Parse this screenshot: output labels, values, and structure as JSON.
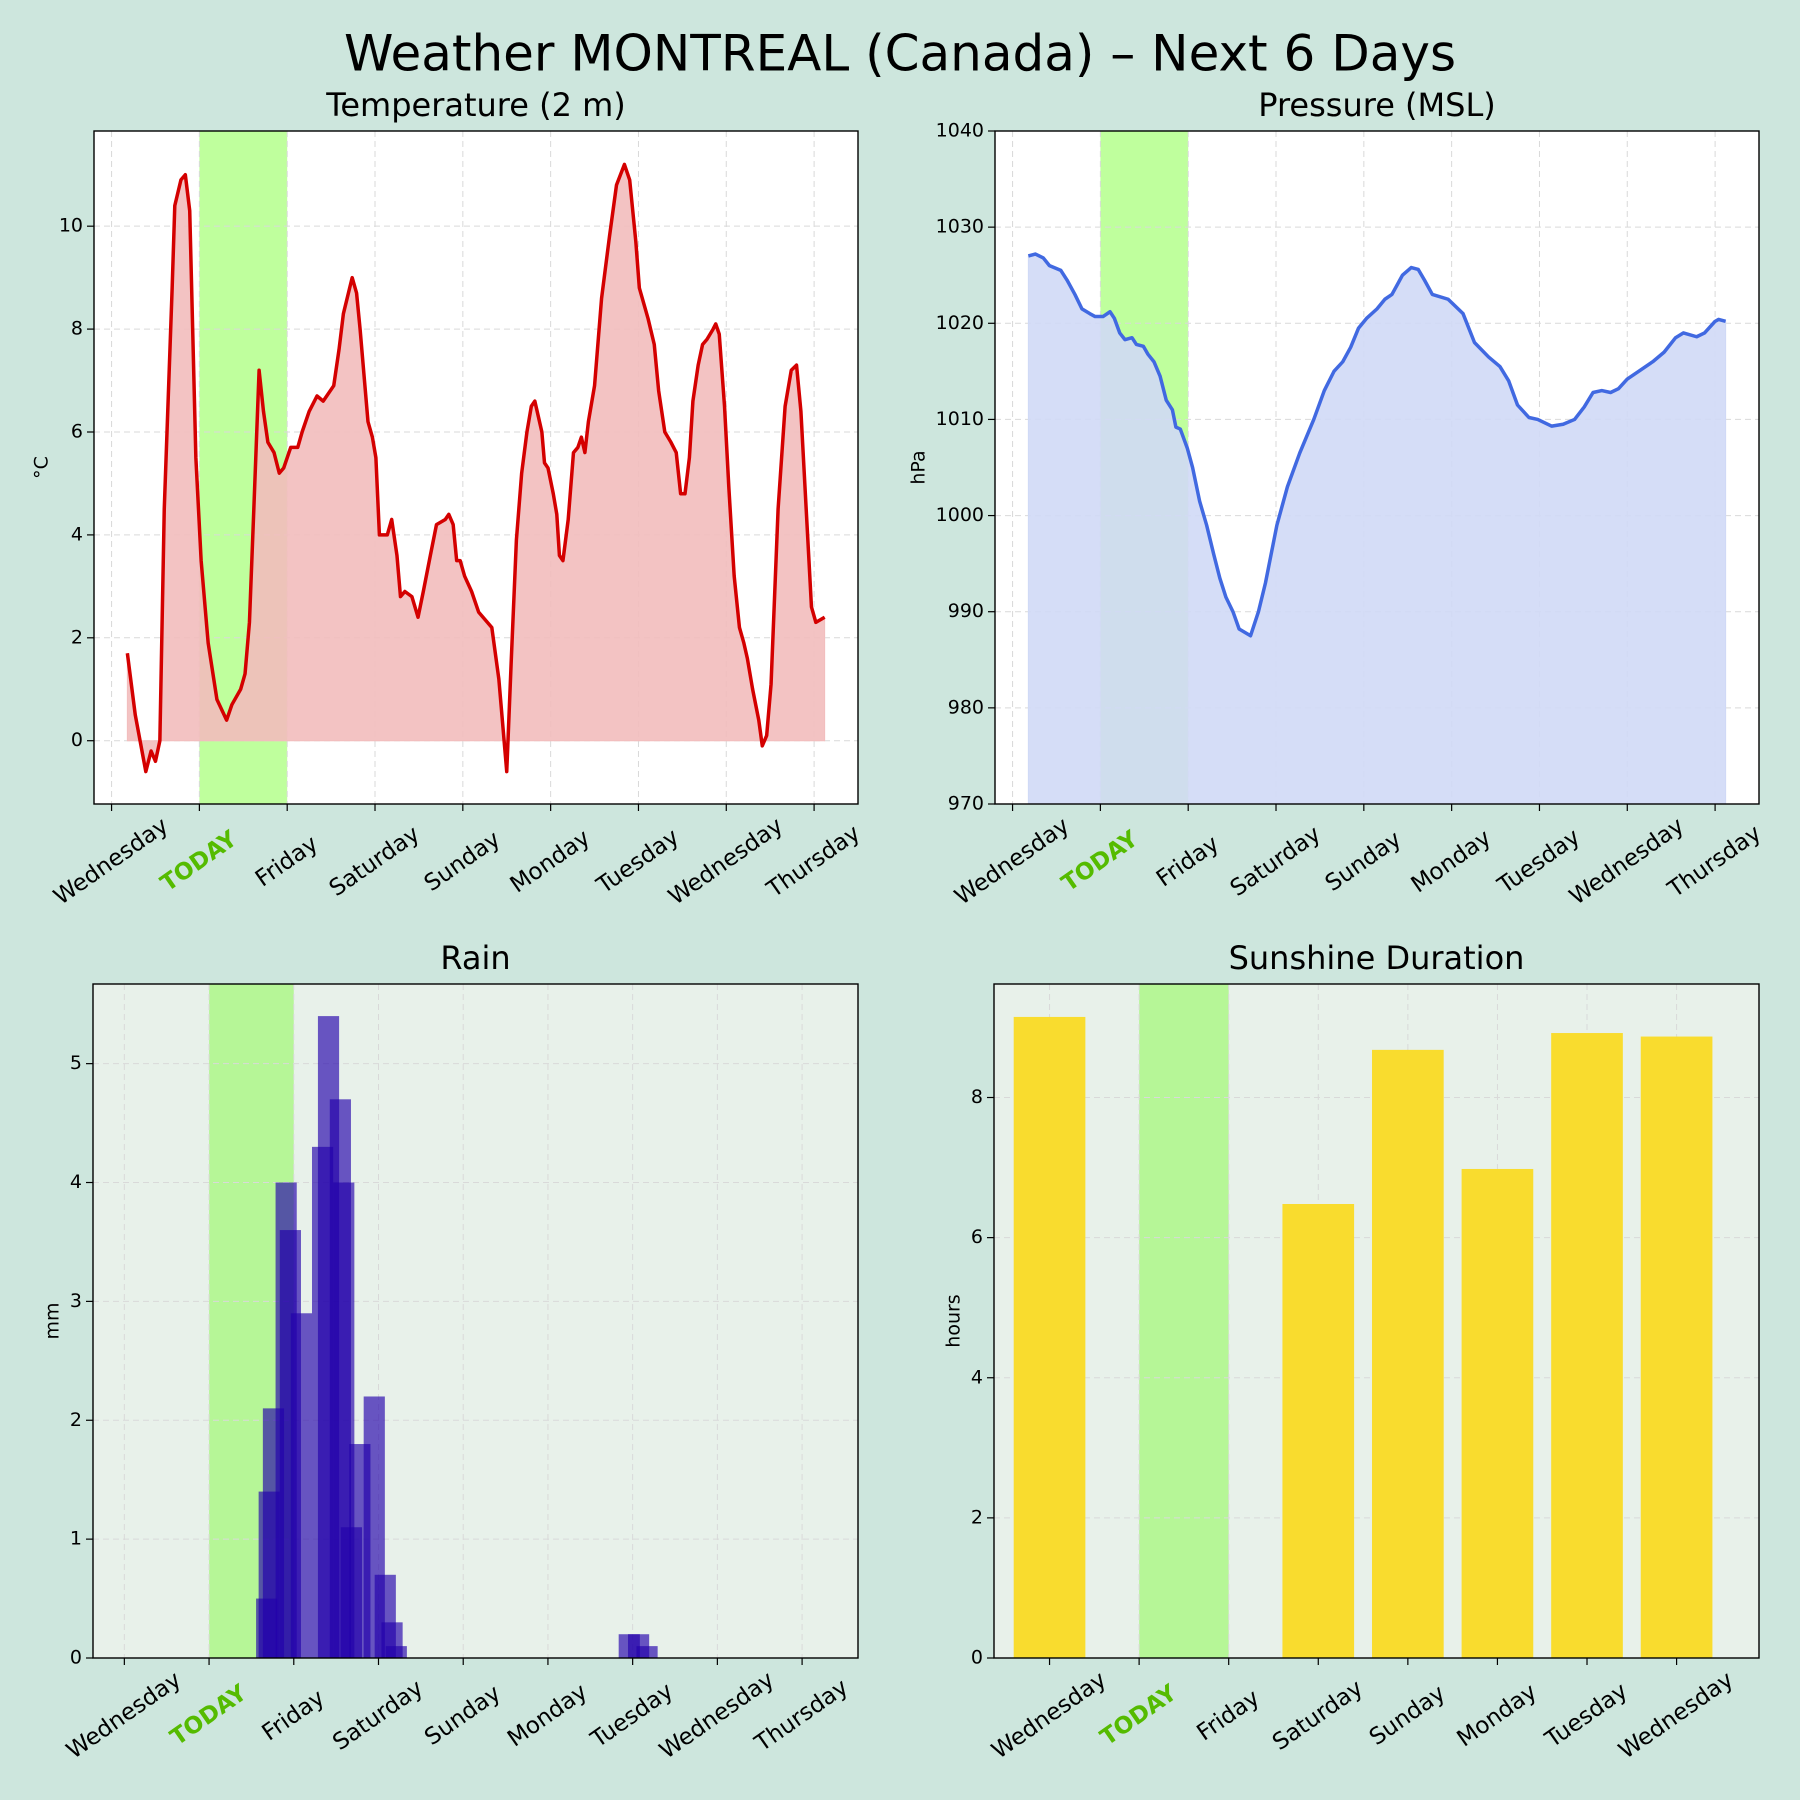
{
  "title": "Weather MONTREAL (Canada) – Next 6 Days",
  "chart_data": [
    {
      "type": "area",
      "title": "Temperature (2 m)",
      "ylabel": "°C",
      "color": "#d40000",
      "fill_color": "#f2bdbd",
      "background": "#ffffff",
      "highlight": [
        1,
        2
      ],
      "highlight_color": "#b4ff8c",
      "highlight_label_color": "#55bb00",
      "grid": true,
      "xlim": [
        -0.2,
        8.5
      ],
      "ylim": [
        -1.23,
        11.85
      ],
      "yticks": [
        0,
        2,
        4,
        6,
        8,
        10
      ],
      "xticks": [
        {
          "value": 0,
          "label": "Wednesday"
        },
        {
          "value": 1,
          "label": "TODAY"
        },
        {
          "value": 2,
          "label": "Friday"
        },
        {
          "value": 3,
          "label": "Saturday"
        },
        {
          "value": 4,
          "label": "Sunday"
        },
        {
          "value": 5,
          "label": "Monday"
        },
        {
          "value": 6,
          "label": "Tuesday"
        },
        {
          "value": 7,
          "label": "Wednesday"
        },
        {
          "value": 8,
          "label": "Thursday"
        }
      ],
      "x": [
        0.18,
        0.27,
        0.39,
        0.45,
        0.5,
        0.55,
        0.6,
        0.69,
        0.72,
        0.79,
        0.84,
        0.89,
        0.96,
        1.02,
        1.1,
        1.2,
        1.31,
        1.37,
        1.47,
        1.52,
        1.57,
        1.62,
        1.68,
        1.73,
        1.78,
        1.85,
        1.91,
        1.96,
        2.04,
        2.12,
        2.17,
        2.25,
        2.34,
        2.41,
        2.53,
        2.59,
        2.64,
        2.74,
        2.79,
        2.83,
        2.92,
        2.97,
        3.01,
        3.05,
        3.14,
        3.19,
        3.25,
        3.29,
        3.34,
        3.42,
        3.49,
        3.55,
        3.63,
        3.7,
        3.8,
        3.84,
        3.89,
        3.93,
        3.97,
        4.02,
        4.1,
        4.18,
        4.23,
        4.33,
        4.41,
        4.46,
        4.5,
        4.55,
        4.61,
        4.67,
        4.73,
        4.78,
        4.82,
        4.86,
        4.9,
        4.93,
        4.97,
        5.03,
        5.07,
        5.1,
        5.14,
        5.2,
        5.26,
        5.31,
        5.35,
        5.39,
        5.43,
        5.5,
        5.58,
        5.67,
        5.75,
        5.84,
        5.9,
        5.97,
        6.01,
        6.06,
        6.11,
        6.18,
        6.23,
        6.3,
        6.37,
        6.43,
        6.48,
        6.53,
        6.58,
        6.62,
        6.68,
        6.73,
        6.78,
        6.85,
        6.88,
        6.92,
        6.98,
        7.03,
        7.09,
        7.15,
        7.2,
        7.24,
        7.3,
        7.37,
        7.41,
        7.46,
        7.51,
        7.59,
        7.67,
        7.74,
        7.8,
        7.85,
        7.91,
        7.97,
        8.02,
        8.12
      ],
      "values": [
        1.7,
        0.5,
        -0.6,
        -0.2,
        -0.4,
        0,
        4.5,
        8.8,
        10.4,
        10.9,
        11.0,
        10.3,
        5.5,
        3.5,
        1.9,
        0.8,
        0.4,
        0.7,
        1.0,
        1.3,
        2.3,
        4.5,
        7.2,
        6.4,
        5.8,
        5.6,
        5.2,
        5.3,
        5.7,
        5.7,
        6.0,
        6.4,
        6.7,
        6.6,
        6.9,
        7.6,
        8.3,
        9.0,
        8.7,
        8.0,
        6.2,
        5.9,
        5.5,
        4.0,
        4.0,
        4.3,
        3.6,
        2.8,
        2.9,
        2.8,
        2.4,
        2.9,
        3.6,
        4.2,
        4.3,
        4.4,
        4.2,
        3.5,
        3.5,
        3.2,
        2.9,
        2.5,
        2.4,
        2.2,
        1.2,
        0.2,
        -0.6,
        1.5,
        3.9,
        5.2,
        6.0,
        6.5,
        6.6,
        6.3,
        6.0,
        5.4,
        5.3,
        4.8,
        4.4,
        3.6,
        3.5,
        4.3,
        5.6,
        5.7,
        5.9,
        5.6,
        6.2,
        6.9,
        8.6,
        9.8,
        10.8,
        11.2,
        10.9,
        9.7,
        8.8,
        8.5,
        8.2,
        7.7,
        6.8,
        6.0,
        5.8,
        5.6,
        4.8,
        4.8,
        5.5,
        6.6,
        7.3,
        7.7,
        7.8,
        8.0,
        8.1,
        7.9,
        6.5,
        4.9,
        3.2,
        2.2,
        1.9,
        1.6,
        1.0,
        0.4,
        -0.1,
        0.1,
        1.1,
        4.5,
        6.5,
        7.2,
        7.3,
        6.4,
        4.5,
        2.6,
        2.3,
        2.4
      ]
    },
    {
      "type": "area",
      "title": "Pressure (MSL)",
      "ylabel": "hPa",
      "color": "#4169e1",
      "fill_color": "#d0d9f6",
      "background": "#ffffff",
      "highlight": [
        1,
        2
      ],
      "highlight_color": "#b4ff8c",
      "highlight_label_color": "#55bb00",
      "grid": true,
      "xlim": [
        -0.2,
        8.5
      ],
      "ylim": [
        970,
        1040
      ],
      "yticks": [
        970,
        980,
        990,
        1000,
        1010,
        1020,
        1030,
        1040
      ],
      "xticks": [
        {
          "value": 0,
          "label": "Wednesday"
        },
        {
          "value": 1,
          "label": "TODAY"
        },
        {
          "value": 2,
          "label": "Friday"
        },
        {
          "value": 3,
          "label": "Saturday"
        },
        {
          "value": 4,
          "label": "Sunday"
        },
        {
          "value": 5,
          "label": "Monday"
        },
        {
          "value": 6,
          "label": "Tuesday"
        },
        {
          "value": 7,
          "label": "Wednesday"
        },
        {
          "value": 8,
          "label": "Thursday"
        }
      ],
      "x": [
        0.18,
        0.26,
        0.35,
        0.42,
        0.55,
        0.62,
        0.71,
        0.79,
        0.88,
        0.94,
        1.03,
        1.11,
        1.16,
        1.22,
        1.28,
        1.36,
        1.41,
        1.49,
        1.54,
        1.61,
        1.68,
        1.75,
        1.82,
        1.86,
        1.91,
        1.99,
        2.05,
        2.13,
        2.21,
        2.29,
        2.36,
        2.43,
        2.51,
        2.58,
        2.71,
        2.8,
        2.88,
        3.01,
        3.13,
        3.27,
        3.43,
        3.55,
        3.66,
        3.76,
        3.85,
        3.94,
        4.03,
        4.15,
        4.24,
        4.32,
        4.44,
        4.54,
        4.62,
        4.69,
        4.78,
        4.96,
        5.13,
        5.26,
        5.42,
        5.55,
        5.65,
        5.75,
        5.88,
        5.98,
        6.14,
        6.27,
        6.4,
        6.51,
        6.61,
        6.71,
        6.81,
        6.9,
        7.0,
        7.13,
        7.29,
        7.42,
        7.55,
        7.64,
        7.79,
        7.88,
        8.0,
        8.04,
        8.12
      ],
      "values": [
        1027,
        1027.2,
        1026.8,
        1026,
        1025.5,
        1024.5,
        1023,
        1021.5,
        1021,
        1020.7,
        1020.7,
        1021.2,
        1020.5,
        1019,
        1018.3,
        1018.5,
        1017.8,
        1017.6,
        1016.8,
        1016,
        1014.5,
        1012,
        1011,
        1009.2,
        1009,
        1007,
        1005,
        1001.5,
        999,
        996,
        993.5,
        991.5,
        990,
        988.2,
        987.5,
        990,
        993,
        999,
        1003,
        1006.5,
        1010,
        1013,
        1015,
        1016,
        1017.5,
        1019.5,
        1020.5,
        1021.5,
        1022.5,
        1023,
        1025,
        1025.8,
        1025.6,
        1024.5,
        1023,
        1022.5,
        1021,
        1018,
        1016.5,
        1015.5,
        1014,
        1011.5,
        1010.2,
        1010,
        1009.3,
        1009.5,
        1010,
        1011.3,
        1012.8,
        1013,
        1012.8,
        1013.2,
        1014.2,
        1015,
        1016,
        1017,
        1018.5,
        1019,
        1018.6,
        1019,
        1020.2,
        1020.4,
        1020.2
      ]
    },
    {
      "type": "bar",
      "title": "Rain",
      "ylabel": "mm",
      "color": "#2200aa",
      "opacity": 0.65,
      "bar_width": 0.25,
      "background": "#e8f1ea",
      "highlight": [
        1,
        2
      ],
      "highlight_color": "#adf788",
      "highlight_label_color": "#55bb00",
      "grid": true,
      "xlim": [
        -0.37,
        8.66
      ],
      "ylim": [
        0,
        5.67
      ],
      "yticks": [
        0,
        1,
        2,
        3,
        4,
        5
      ],
      "xticks": [
        {
          "value": 0,
          "label": "Wednesday"
        },
        {
          "value": 1,
          "label": "TODAY"
        },
        {
          "value": 2,
          "label": "Friday"
        },
        {
          "value": 3,
          "label": "Saturday"
        },
        {
          "value": 4,
          "label": "Sunday"
        },
        {
          "value": 5,
          "label": "Monday"
        },
        {
          "value": 6,
          "label": "Tuesday"
        },
        {
          "value": 7,
          "label": "Wednesday"
        },
        {
          "value": 8,
          "label": "Thursday"
        }
      ],
      "x": [
        1.68,
        1.71,
        1.76,
        1.91,
        1.96,
        2.09,
        2.34,
        2.41,
        2.55,
        2.59,
        2.68,
        2.78,
        2.95,
        3.08,
        3.16,
        3.21,
        5.96,
        6.07,
        6.17
      ],
      "values": [
        0.5,
        1.4,
        2.1,
        4.0,
        3.6,
        2.9,
        4.3,
        5.4,
        4.7,
        4.0,
        1.1,
        1.8,
        2.2,
        0.7,
        0.3,
        0.1,
        0.2,
        0.2,
        0.1
      ]
    },
    {
      "type": "catbar",
      "title": "Sunshine Duration",
      "ylabel": "hours",
      "color": "#f9dc2e",
      "bar_width": 0.8,
      "background": "#e8f1ea",
      "highlight": [
        1,
        2
      ],
      "highlight_color": "#adf788",
      "highlight_label_color": "#55bb00",
      "grid": true,
      "xlim": [
        -0.62,
        7.92
      ],
      "ylim": [
        0,
        9.62
      ],
      "yticks": [
        0,
        2,
        4,
        6,
        8
      ],
      "categories": [
        "Wednesday",
        "TODAY",
        "Friday",
        "Saturday",
        "Sunday",
        "Monday",
        "Tuesday",
        "Wednesday"
      ],
      "values": [
        9.15,
        0,
        0,
        6.48,
        8.68,
        6.98,
        8.92,
        8.87
      ]
    }
  ]
}
